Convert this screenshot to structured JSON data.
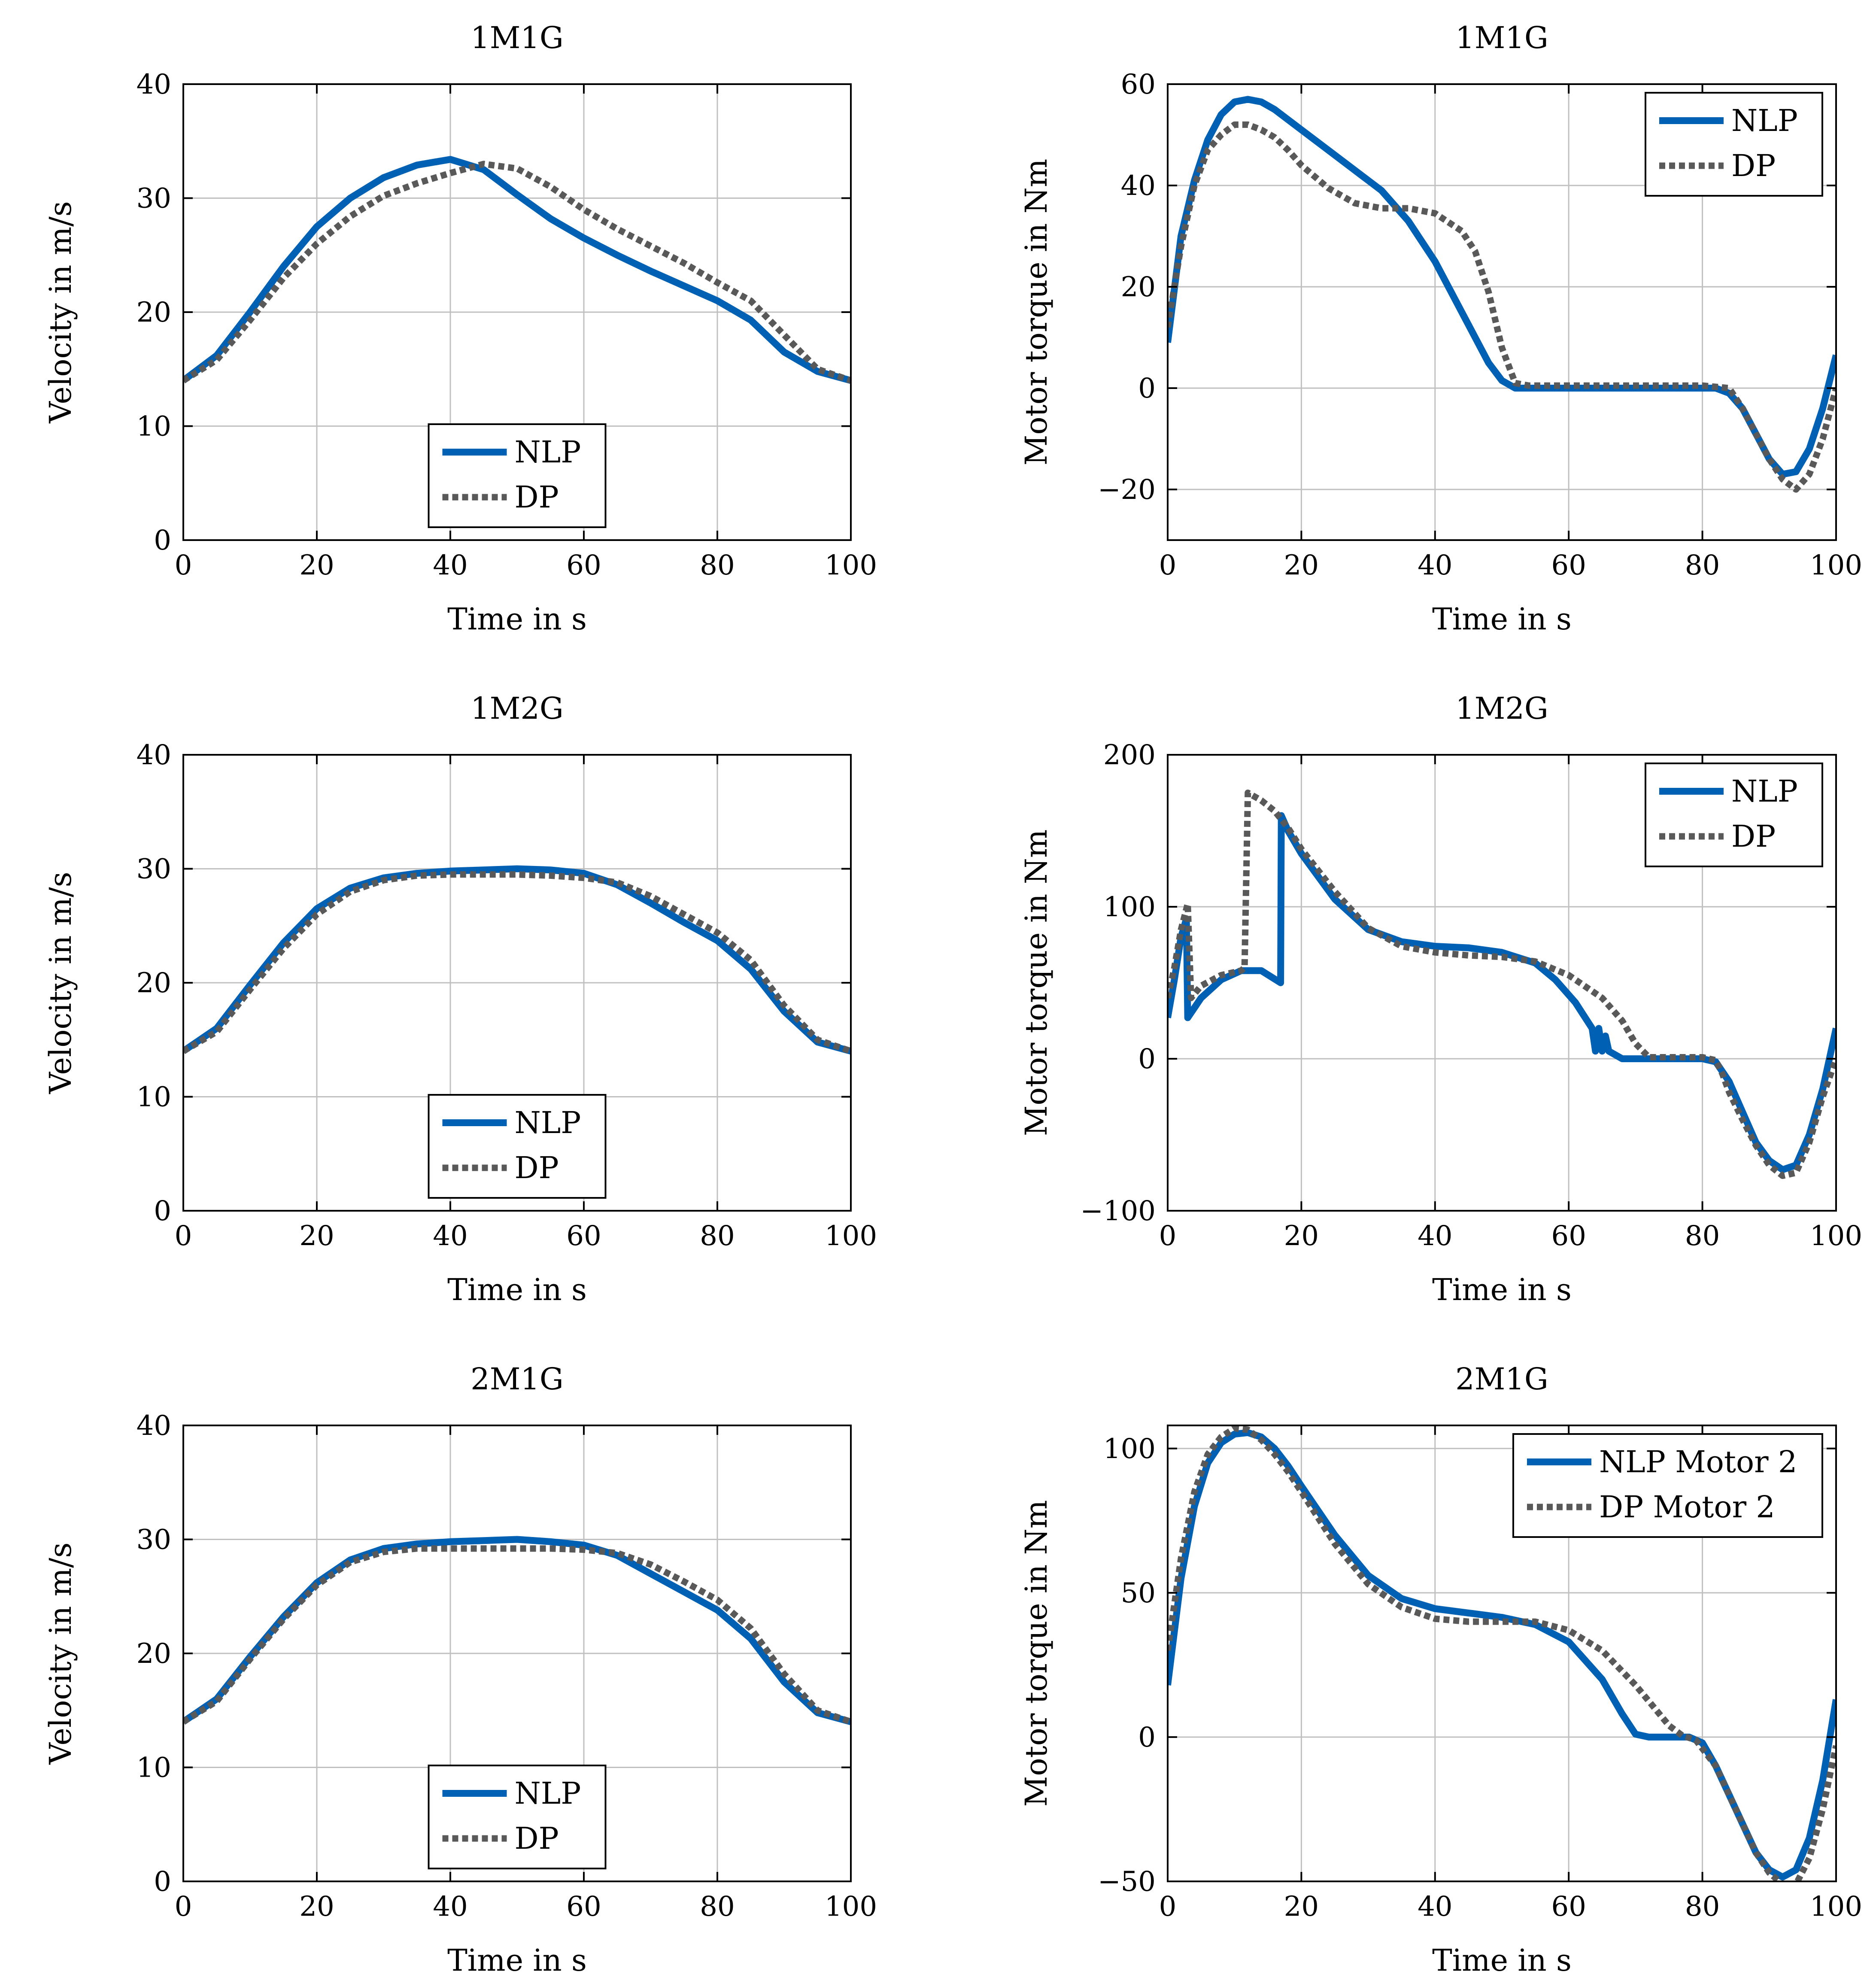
{
  "colors": {
    "nlp": "#0060b4",
    "dp": "#595959",
    "grid": "#c0c0c0",
    "axis": "#000000"
  },
  "chart_data": [
    {
      "type": "line",
      "title": "1M1G",
      "xlabel": "Time in s",
      "ylabel": "Velocity in m/s",
      "xlim": [
        0,
        100
      ],
      "ylim": [
        0,
        40
      ],
      "xticks": [
        "0",
        "20",
        "40",
        "60",
        "80",
        "100"
      ],
      "yticks": [
        "0",
        "10",
        "20",
        "30",
        "40"
      ],
      "grid": true,
      "legend_position": "bottom-center",
      "series": [
        {
          "name": "NLP",
          "style": "solid",
          "x": [
            0,
            5,
            10,
            15,
            20,
            25,
            30,
            35,
            40,
            45,
            50,
            55,
            60,
            65,
            70,
            75,
            80,
            85,
            90,
            95,
            100
          ],
          "y": [
            14,
            16.2,
            20,
            24,
            27.5,
            30,
            31.8,
            32.9,
            33.4,
            32.5,
            30.3,
            28.2,
            26.5,
            25,
            23.6,
            22.3,
            21,
            19.3,
            16.5,
            14.8,
            14
          ]
        },
        {
          "name": "DP",
          "style": "dotted",
          "x": [
            0,
            5,
            10,
            15,
            20,
            25,
            30,
            35,
            40,
            45,
            50,
            55,
            60,
            65,
            70,
            75,
            80,
            85,
            90,
            95,
            100
          ],
          "y": [
            14,
            15.8,
            19.3,
            23,
            26,
            28.4,
            30.2,
            31.3,
            32.2,
            33,
            32.6,
            31,
            29,
            27.3,
            25.8,
            24.3,
            22.6,
            21,
            18,
            15,
            14
          ]
        }
      ]
    },
    {
      "type": "line",
      "title": "1M1G",
      "xlabel": "Time in s",
      "ylabel": "Motor torque in Nm",
      "xlim": [
        0,
        100
      ],
      "ylim": [
        -30,
        60
      ],
      "xticks": [
        "0",
        "20",
        "40",
        "60",
        "80",
        "100"
      ],
      "yticks": [
        "−20",
        "0",
        "20",
        "40",
        "60"
      ],
      "grid": true,
      "legend_position": "top-right",
      "series": [
        {
          "name": "NLP",
          "style": "solid",
          "x": [
            0,
            2,
            4,
            6,
            8,
            10,
            12,
            14,
            16,
            20,
            24,
            28,
            32,
            36,
            40,
            44,
            48,
            50,
            52,
            54,
            60,
            70,
            80,
            82,
            84,
            86,
            88,
            90,
            92,
            94,
            96,
            98,
            100
          ],
          "y": [
            9,
            30,
            41,
            49,
            54,
            56.5,
            57,
            56.5,
            55,
            51,
            47,
            43,
            39,
            33,
            25,
            15,
            5,
            1.5,
            0,
            0,
            0,
            0,
            0,
            0,
            -1,
            -4,
            -9,
            -14,
            -17,
            -16.5,
            -12,
            -4,
            6.5
          ]
        },
        {
          "name": "DP",
          "style": "dotted",
          "x": [
            0,
            2,
            4,
            6,
            8,
            10,
            12,
            14,
            16,
            18,
            20,
            24,
            28,
            32,
            36,
            40,
            44,
            46,
            48,
            50,
            52,
            54,
            60,
            70,
            80,
            84,
            86,
            88,
            90,
            92,
            94,
            96,
            98,
            100
          ],
          "y": [
            12,
            28,
            40,
            47,
            50,
            52,
            52,
            51,
            49.5,
            47,
            44,
            39.5,
            36.5,
            35.5,
            35.5,
            34.5,
            31,
            27,
            19,
            8,
            1,
            0.5,
            0.5,
            0.5,
            0.5,
            0,
            -4,
            -9,
            -14,
            -18,
            -20,
            -17,
            -10,
            0
          ]
        }
      ]
    },
    {
      "type": "line",
      "title": "1M2G",
      "xlabel": "Time in s",
      "ylabel": "Velocity in m/s",
      "xlim": [
        0,
        100
      ],
      "ylim": [
        0,
        40
      ],
      "xticks": [
        "0",
        "20",
        "40",
        "60",
        "80",
        "100"
      ],
      "yticks": [
        "0",
        "10",
        "20",
        "30",
        "40"
      ],
      "grid": true,
      "legend_position": "bottom-center",
      "series": [
        {
          "name": "NLP",
          "style": "solid",
          "x": [
            0,
            5,
            10,
            15,
            20,
            25,
            30,
            35,
            40,
            45,
            50,
            55,
            60,
            65,
            70,
            75,
            80,
            85,
            90,
            95,
            100
          ],
          "y": [
            14,
            16,
            19.8,
            23.5,
            26.5,
            28.3,
            29.2,
            29.6,
            29.8,
            29.9,
            30,
            29.9,
            29.6,
            28.6,
            27,
            25.3,
            23.7,
            21.2,
            17.5,
            14.8,
            14
          ]
        },
        {
          "name": "DP",
          "style": "dotted",
          "x": [
            0,
            5,
            10,
            15,
            20,
            25,
            30,
            35,
            40,
            45,
            50,
            55,
            60,
            65,
            70,
            75,
            80,
            85,
            90,
            95,
            100
          ],
          "y": [
            14,
            15.7,
            19.4,
            23,
            26,
            28,
            29,
            29.4,
            29.5,
            29.5,
            29.5,
            29.4,
            29.2,
            28.8,
            27.6,
            26,
            24.4,
            22,
            18,
            15,
            14
          ]
        }
      ]
    },
    {
      "type": "line",
      "title": "1M2G",
      "xlabel": "Time in s",
      "ylabel": "Motor torque in Nm",
      "xlim": [
        0,
        100
      ],
      "ylim": [
        -100,
        200
      ],
      "xticks": [
        "0",
        "20",
        "40",
        "60",
        "80",
        "100"
      ],
      "yticks": [
        "−100",
        "0",
        "100",
        "200"
      ],
      "grid": true,
      "legend_position": "top-right",
      "series": [
        {
          "name": "NLP",
          "style": "solid",
          "x": [
            0,
            1,
            2,
            2.8,
            3,
            5,
            8,
            11,
            14,
            16.9,
            17,
            18,
            20,
            25,
            30,
            35,
            40,
            45,
            50,
            55,
            58,
            61,
            63.5,
            64,
            64.5,
            65,
            65.5,
            66,
            68,
            70,
            80,
            82,
            84,
            86,
            88,
            90,
            92,
            94,
            96,
            98,
            100
          ],
          "y": [
            27,
            52,
            80,
            92,
            27,
            40,
            52,
            58,
            58,
            50,
            160,
            150,
            135,
            105,
            85,
            77,
            74,
            73,
            70,
            63,
            52,
            37,
            20,
            5,
            20,
            5,
            15,
            5,
            0,
            0,
            0,
            -2,
            -15,
            -35,
            -55,
            -67,
            -73,
            -70,
            -50,
            -20,
            20
          ]
        },
        {
          "name": "DP",
          "style": "dotted",
          "x": [
            0,
            1,
            2,
            3,
            3.5,
            5,
            8,
            11,
            11.5,
            12,
            14,
            16,
            18,
            20,
            25,
            30,
            35,
            40,
            45,
            50,
            55,
            60,
            65,
            68,
            70,
            72,
            80,
            82,
            83,
            84,
            86,
            88,
            90,
            92,
            94,
            96,
            98,
            100
          ],
          "y": [
            40,
            60,
            85,
            102,
            40,
            48,
            55,
            58,
            60,
            175,
            170,
            163,
            152,
            138,
            110,
            86,
            74,
            70,
            68,
            67,
            64,
            55,
            40,
            25,
            10,
            1,
            1,
            -1,
            -10,
            -22,
            -40,
            -57,
            -70,
            -77,
            -75,
            -55,
            -25,
            0
          ]
        }
      ]
    },
    {
      "type": "line",
      "title": "2M1G",
      "xlabel": "Time in s",
      "ylabel": "Velocity in m/s",
      "xlim": [
        0,
        100
      ],
      "ylim": [
        0,
        40
      ],
      "xticks": [
        "0",
        "20",
        "40",
        "60",
        "80",
        "100"
      ],
      "yticks": [
        "0",
        "10",
        "20",
        "30",
        "40"
      ],
      "grid": true,
      "legend_position": "bottom-center",
      "series": [
        {
          "name": "NLP",
          "style": "solid",
          "x": [
            0,
            5,
            10,
            15,
            20,
            25,
            30,
            35,
            40,
            45,
            50,
            55,
            60,
            65,
            70,
            75,
            80,
            85,
            90,
            95,
            100
          ],
          "y": [
            14,
            16,
            19.7,
            23.2,
            26.2,
            28.2,
            29.2,
            29.6,
            29.8,
            29.9,
            30,
            29.8,
            29.5,
            28.6,
            27,
            25.4,
            23.8,
            21.3,
            17.5,
            14.8,
            14
          ]
        },
        {
          "name": "DP",
          "style": "dotted",
          "x": [
            0,
            5,
            10,
            15,
            20,
            25,
            30,
            35,
            40,
            45,
            50,
            55,
            60,
            65,
            70,
            75,
            80,
            85,
            90,
            95,
            100
          ],
          "y": [
            14,
            15.8,
            19.5,
            23,
            26,
            28,
            28.9,
            29.2,
            29.2,
            29.2,
            29.2,
            29.2,
            29.1,
            28.8,
            27.8,
            26.3,
            24.7,
            22.2,
            18.2,
            15,
            14
          ]
        }
      ]
    },
    {
      "type": "line",
      "title": "2M1G",
      "xlabel": "Time in s",
      "ylabel": "Motor torque in Nm",
      "xlim": [
        0,
        100
      ],
      "ylim": [
        -50,
        108
      ],
      "xticks": [
        "0",
        "20",
        "40",
        "60",
        "80",
        "100"
      ],
      "yticks": [
        "−50",
        "0",
        "50",
        "100"
      ],
      "grid": true,
      "legend_position": "top-right",
      "series": [
        {
          "name": "NLP Motor 2",
          "style": "solid",
          "x": [
            0,
            2,
            4,
            6,
            8,
            10,
            12,
            14,
            16,
            18,
            20,
            25,
            30,
            35,
            40,
            45,
            50,
            55,
            60,
            65,
            68,
            70,
            72,
            78,
            80,
            82,
            84,
            86,
            88,
            90,
            92,
            94,
            96,
            98,
            100
          ],
          "y": [
            18,
            55,
            80,
            95,
            102,
            105,
            105.5,
            104,
            100,
            94,
            87,
            70,
            56,
            48,
            44.5,
            43,
            41.5,
            39,
            33,
            20,
            8,
            1,
            0,
            0,
            -2,
            -10,
            -20,
            -30,
            -40,
            -46,
            -48.5,
            -46,
            -35,
            -15,
            13
          ]
        },
        {
          "name": "DP Motor 2",
          "style": "dotted",
          "x": [
            0,
            2,
            4,
            6,
            8,
            10,
            12,
            14,
            16,
            18,
            20,
            25,
            30,
            35,
            40,
            45,
            50,
            55,
            60,
            65,
            70,
            75,
            77,
            79,
            82,
            84,
            86,
            88,
            90,
            92,
            94,
            96,
            98,
            100
          ],
          "y": [
            30,
            62,
            85,
            98,
            104,
            107,
            106.5,
            103,
            98,
            92,
            85,
            67,
            53,
            45,
            41,
            40,
            40,
            40,
            37,
            30,
            18,
            4,
            0.5,
            -1,
            -10,
            -20,
            -30,
            -40,
            -47,
            -51,
            -51,
            -42,
            -25,
            -3
          ]
        }
      ]
    }
  ]
}
